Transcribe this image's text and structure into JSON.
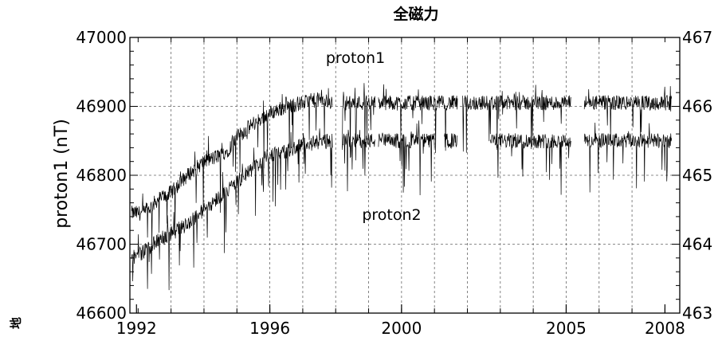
{
  "chart_data": {
    "type": "line",
    "title": "全磁力",
    "ylabel": "proton1 (nT)",
    "xlabel": "",
    "corner_mark": "地",
    "xlim": [
      1991.75,
      2008.45
    ],
    "ylim": [
      46600,
      47000
    ],
    "right_ylim": [
      46300,
      46700
    ],
    "x_ticks": [
      {
        "value": 1991.95,
        "label": "1992"
      },
      {
        "value": 1996,
        "label": "1996"
      },
      {
        "value": 2000,
        "label": "2000"
      },
      {
        "value": 2005,
        "label": "2005"
      },
      {
        "value": 2008,
        "label": "2008"
      }
    ],
    "y_ticks": [
      "46600",
      "46700",
      "46800",
      "46900",
      "47000"
    ],
    "right_y_ticks": [
      "463",
      "464",
      "465",
      "466",
      "467"
    ],
    "grid": true,
    "annotations": [
      {
        "text": "proton1",
        "x": 1998.6,
        "y": 46963
      },
      {
        "text": "proton2",
        "x": 1999.7,
        "y": 46735
      }
    ],
    "series": [
      {
        "name": "proton1",
        "points": [
          [
            1991.8,
            46745
          ],
          [
            1992.2,
            46745
          ],
          [
            1992.6,
            46765
          ],
          [
            1993.0,
            46775
          ],
          [
            1993.5,
            46800
          ],
          [
            1994.0,
            46820
          ],
          [
            1994.3,
            46825
          ],
          [
            1994.7,
            46835
          ],
          [
            1995.0,
            46855
          ],
          [
            1995.5,
            46875
          ],
          [
            1996.0,
            46890
          ],
          [
            1996.5,
            46900
          ],
          [
            1997.0,
            46905
          ],
          [
            1997.5,
            46910
          ],
          [
            1997.9,
            46905
          ]
        ],
        "segments": [
          [
            1991.8,
            1997.9
          ],
          [
            1998.2,
            1999.2
          ],
          [
            1999.3,
            2001.7
          ],
          [
            2001.85,
            2005.15
          ],
          [
            2005.55,
            2008.2
          ]
        ]
      },
      {
        "name": "proton2",
        "points": [
          [
            1991.8,
            46680
          ],
          [
            1992.2,
            46690
          ],
          [
            1992.6,
            46705
          ],
          [
            1993.0,
            46715
          ],
          [
            1993.5,
            46730
          ],
          [
            1994.0,
            46750
          ],
          [
            1994.5,
            46770
          ],
          [
            1995.0,
            46790
          ],
          [
            1995.5,
            46810
          ],
          [
            1996.0,
            46830
          ],
          [
            1996.5,
            46835
          ],
          [
            1997.0,
            46845
          ],
          [
            1997.9,
            46850
          ]
        ],
        "segments": [
          [
            1991.8,
            1997.9
          ],
          [
            1998.2,
            1999.2
          ],
          [
            1999.3,
            2001.0
          ],
          [
            2001.3,
            2001.7
          ],
          [
            2002.7,
            2005.15
          ],
          [
            2005.55,
            2008.2
          ]
        ]
      }
    ]
  }
}
